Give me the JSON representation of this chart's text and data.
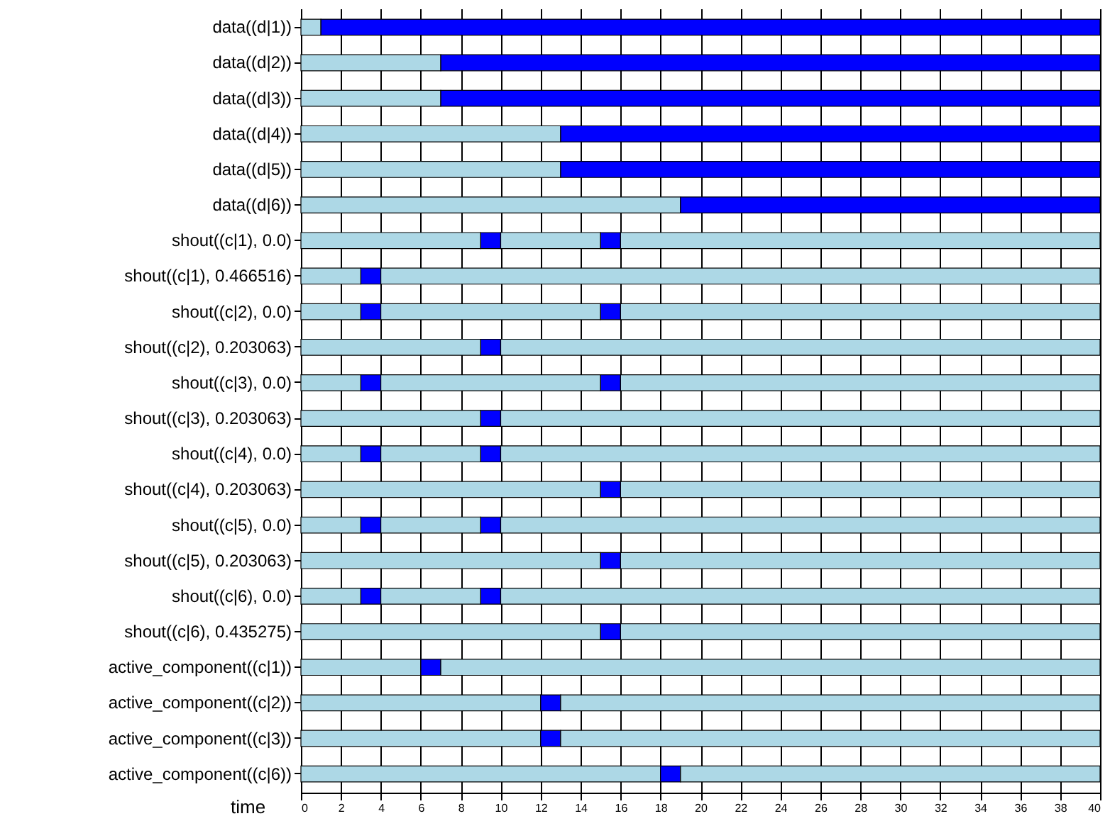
{
  "chart_data": {
    "type": "bar",
    "orientation": "horizontal",
    "stacked": true,
    "xlabel": "time",
    "xlim": [
      0,
      40
    ],
    "xticks": [
      0,
      2,
      4,
      6,
      8,
      10,
      12,
      14,
      16,
      18,
      20,
      22,
      24,
      26,
      28,
      30,
      32,
      34,
      36,
      38,
      40
    ],
    "grid": "x",
    "categories": [
      "data((d|1))",
      "data((d|2))",
      "data((d|3))",
      "data((d|4))",
      "data((d|5))",
      "data((d|6))",
      "shout((c|1), 0.0)",
      "shout((c|1), 0.466516)",
      "shout((c|2), 0.0)",
      "shout((c|2), 0.203063)",
      "shout((c|3), 0.0)",
      "shout((c|3), 0.203063)",
      "shout((c|4), 0.0)",
      "shout((c|4), 0.203063)",
      "shout((c|5), 0.0)",
      "shout((c|5), 0.203063)",
      "shout((c|6), 0.0)",
      "shout((c|6), 0.435275)",
      "active_component((c|1))",
      "active_component((c|2))",
      "active_component((c|3))",
      "active_component((c|6))"
    ],
    "series": [
      {
        "color": "#add8e6",
        "values": [
          1,
          7,
          7,
          13,
          13,
          19,
          9,
          3,
          3,
          9,
          3,
          9,
          3,
          15,
          3,
          15,
          3,
          15,
          6,
          12,
          12,
          18
        ]
      },
      {
        "color": "#0000ff",
        "values": [
          39,
          33,
          33,
          27,
          27,
          21,
          1,
          1,
          1,
          1,
          1,
          1,
          1,
          1,
          1,
          1,
          1,
          1,
          1,
          1,
          1,
          1
        ]
      },
      {
        "color": "#add8e6",
        "values": [
          null,
          null,
          null,
          null,
          null,
          null,
          5,
          36,
          11,
          30,
          11,
          30,
          5,
          24,
          5,
          24,
          5,
          24,
          33,
          27,
          27,
          21
        ]
      },
      {
        "color": "#0000ff",
        "values": [
          null,
          null,
          null,
          null,
          null,
          null,
          1,
          null,
          1,
          null,
          1,
          null,
          1,
          null,
          1,
          null,
          1,
          null,
          null,
          null,
          null,
          null
        ]
      },
      {
        "color": "#add8e6",
        "values": [
          null,
          null,
          null,
          null,
          null,
          null,
          24,
          null,
          24,
          null,
          24,
          null,
          30,
          null,
          30,
          null,
          30,
          null,
          null,
          null,
          null,
          null
        ]
      }
    ]
  }
}
